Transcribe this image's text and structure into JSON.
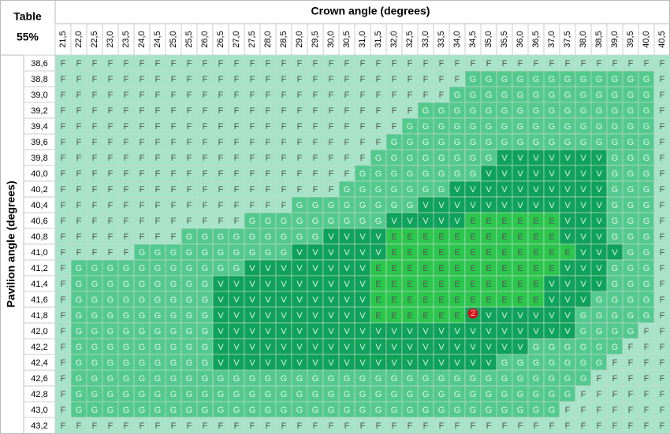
{
  "table": {
    "corner_title": "Table",
    "corner_subtitle": "55%",
    "column_title": "Crown angle (degrees)",
    "row_title": "Pavilion angle (degrees)",
    "columns": [
      "21,5",
      "22,0",
      "22,5",
      "23,0",
      "23,5",
      "24,0",
      "24,5",
      "25,0",
      "25,5",
      "26,0",
      "26,5",
      "27,0",
      "27,5",
      "28,0",
      "28,5",
      "29,0",
      "29,5",
      "30,0",
      "30,5",
      "31,0",
      "31,5",
      "32,0",
      "32,5",
      "33,0",
      "33,5",
      "34,0",
      "34,5",
      "35,0",
      "35,5",
      "36,0",
      "36,5",
      "37,0",
      "37,5",
      "38,0",
      "38,5",
      "39,0",
      "39,5",
      "40,0",
      "40,5"
    ],
    "rows": [
      {
        "label": "38,6",
        "cells": [
          "F",
          "F",
          "F",
          "F",
          "F",
          "F",
          "F",
          "F",
          "F",
          "F",
          "F",
          "F",
          "F",
          "F",
          "F",
          "F",
          "F",
          "F",
          "F",
          "F",
          "F",
          "F",
          "F",
          "F",
          "F",
          "F",
          "F",
          "F",
          "F",
          "F",
          "F",
          "F",
          "F",
          "F",
          "F",
          "F",
          "F",
          "F",
          "F"
        ]
      },
      {
        "label": "38,8",
        "cells": [
          "F",
          "F",
          "F",
          "F",
          "F",
          "F",
          "F",
          "F",
          "F",
          "F",
          "F",
          "F",
          "F",
          "F",
          "F",
          "F",
          "F",
          "F",
          "F",
          "F",
          "F",
          "F",
          "F",
          "F",
          "F",
          "F",
          "G",
          "G",
          "G",
          "G",
          "G",
          "G",
          "G",
          "G",
          "G",
          "G",
          "G",
          "G",
          "F"
        ]
      },
      {
        "label": "39,0",
        "cells": [
          "F",
          "F",
          "F",
          "F",
          "F",
          "F",
          "F",
          "F",
          "F",
          "F",
          "F",
          "F",
          "F",
          "F",
          "F",
          "F",
          "F",
          "F",
          "F",
          "F",
          "F",
          "F",
          "F",
          "F",
          "F",
          "G",
          "G",
          "G",
          "G",
          "G",
          "G",
          "G",
          "G",
          "G",
          "G",
          "G",
          "G",
          "G",
          "F"
        ]
      },
      {
        "label": "39,2",
        "cells": [
          "F",
          "F",
          "F",
          "F",
          "F",
          "F",
          "F",
          "F",
          "F",
          "F",
          "F",
          "F",
          "F",
          "F",
          "F",
          "F",
          "F",
          "F",
          "F",
          "F",
          "F",
          "F",
          "F",
          "G",
          "G",
          "G",
          "G",
          "G",
          "G",
          "G",
          "G",
          "G",
          "G",
          "G",
          "G",
          "G",
          "G",
          "G",
          "F"
        ]
      },
      {
        "label": "39,4",
        "cells": [
          "F",
          "F",
          "F",
          "F",
          "F",
          "F",
          "F",
          "F",
          "F",
          "F",
          "F",
          "F",
          "F",
          "F",
          "F",
          "F",
          "F",
          "F",
          "F",
          "F",
          "F",
          "F",
          "G",
          "G",
          "G",
          "G",
          "G",
          "G",
          "G",
          "G",
          "G",
          "G",
          "G",
          "G",
          "G",
          "G",
          "G",
          "G",
          "F"
        ]
      },
      {
        "label": "39,6",
        "cells": [
          "F",
          "F",
          "F",
          "F",
          "F",
          "F",
          "F",
          "F",
          "F",
          "F",
          "F",
          "F",
          "F",
          "F",
          "F",
          "F",
          "F",
          "F",
          "F",
          "F",
          "F",
          "G",
          "G",
          "G",
          "G",
          "G",
          "G",
          "G",
          "G",
          "G",
          "G",
          "G",
          "G",
          "G",
          "G",
          "G",
          "G",
          "G",
          "F"
        ]
      },
      {
        "label": "39,8",
        "cells": [
          "F",
          "F",
          "F",
          "F",
          "F",
          "F",
          "F",
          "F",
          "F",
          "F",
          "F",
          "F",
          "F",
          "F",
          "F",
          "F",
          "F",
          "F",
          "F",
          "F",
          "G",
          "G",
          "G",
          "G",
          "G",
          "G",
          "G",
          "G",
          "V",
          "V",
          "V",
          "V",
          "V",
          "V",
          "V",
          "G",
          "G",
          "G",
          "F"
        ]
      },
      {
        "label": "40,0",
        "cells": [
          "F",
          "F",
          "F",
          "F",
          "F",
          "F",
          "F",
          "F",
          "F",
          "F",
          "F",
          "F",
          "F",
          "F",
          "F",
          "F",
          "F",
          "F",
          "F",
          "G",
          "G",
          "G",
          "G",
          "G",
          "G",
          "G",
          "G",
          "V",
          "V",
          "V",
          "V",
          "V",
          "V",
          "V",
          "V",
          "G",
          "G",
          "G",
          "F"
        ]
      },
      {
        "label": "40,2",
        "cells": [
          "F",
          "F",
          "F",
          "F",
          "F",
          "F",
          "F",
          "F",
          "F",
          "F",
          "F",
          "F",
          "F",
          "F",
          "F",
          "F",
          "F",
          "F",
          "G",
          "G",
          "G",
          "G",
          "G",
          "G",
          "G",
          "V",
          "V",
          "V",
          "V",
          "V",
          "V",
          "V",
          "V",
          "V",
          "V",
          "G",
          "G",
          "G",
          "F"
        ]
      },
      {
        "label": "40,4",
        "cells": [
          "F",
          "F",
          "F",
          "F",
          "F",
          "F",
          "F",
          "F",
          "F",
          "F",
          "F",
          "F",
          "F",
          "F",
          "F",
          "G",
          "G",
          "G",
          "G",
          "G",
          "G",
          "G",
          "G",
          "V",
          "V",
          "V",
          "V",
          "V",
          "V",
          "V",
          "V",
          "V",
          "V",
          "V",
          "V",
          "G",
          "G",
          "G",
          "F"
        ]
      },
      {
        "label": "40,6",
        "cells": [
          "F",
          "F",
          "F",
          "F",
          "F",
          "F",
          "F",
          "F",
          "F",
          "F",
          "F",
          "F",
          "G",
          "G",
          "G",
          "G",
          "G",
          "G",
          "G",
          "G",
          "G",
          "V",
          "V",
          "V",
          "V",
          "V",
          "E",
          "E",
          "E",
          "E",
          "E",
          "E",
          "V",
          "V",
          "V",
          "G",
          "G",
          "G",
          "F"
        ]
      },
      {
        "label": "40,8",
        "cells": [
          "F",
          "F",
          "F",
          "F",
          "F",
          "F",
          "F",
          "F",
          "G",
          "G",
          "G",
          "G",
          "G",
          "G",
          "G",
          "G",
          "G",
          "V",
          "V",
          "V",
          "V",
          "E",
          "E",
          "E",
          "E",
          "E",
          "E",
          "E",
          "E",
          "E",
          "E",
          "E",
          "V",
          "V",
          "V",
          "G",
          "G",
          "G",
          "F"
        ]
      },
      {
        "label": "41,0",
        "cells": [
          "F",
          "F",
          "F",
          "F",
          "F",
          "G",
          "G",
          "G",
          "G",
          "G",
          "G",
          "G",
          "G",
          "G",
          "G",
          "V",
          "V",
          "V",
          "V",
          "V",
          "V",
          "E",
          "E",
          "E",
          "E",
          "E",
          "E",
          "E",
          "E",
          "E",
          "E",
          "E",
          "E",
          "V",
          "V",
          "V",
          "G",
          "G",
          "F"
        ]
      },
      {
        "label": "41,2",
        "cells": [
          "F",
          "G",
          "G",
          "G",
          "G",
          "G",
          "G",
          "G",
          "G",
          "G",
          "G",
          "G",
          "V",
          "V",
          "V",
          "V",
          "V",
          "V",
          "V",
          "V",
          "E",
          "E",
          "E",
          "E",
          "E",
          "E",
          "E",
          "E",
          "E",
          "E",
          "E",
          "E",
          "V",
          "V",
          "V",
          "G",
          "G",
          "G",
          "F"
        ]
      },
      {
        "label": "41,4",
        "cells": [
          "F",
          "G",
          "G",
          "G",
          "G",
          "G",
          "G",
          "G",
          "G",
          "G",
          "V",
          "V",
          "V",
          "V",
          "V",
          "V",
          "V",
          "V",
          "V",
          "V",
          "E",
          "E",
          "E",
          "E",
          "E",
          "E",
          "E",
          "E",
          "E",
          "E",
          "E",
          "V",
          "V",
          "V",
          "V",
          "G",
          "G",
          "G",
          "F"
        ]
      },
      {
        "label": "41,6",
        "cells": [
          "F",
          "G",
          "G",
          "G",
          "G",
          "G",
          "G",
          "G",
          "G",
          "G",
          "V",
          "V",
          "V",
          "V",
          "V",
          "V",
          "V",
          "V",
          "V",
          "V",
          "E",
          "E",
          "E",
          "E",
          "E",
          "E",
          "E",
          "E",
          "E",
          "E",
          "E",
          "V",
          "V",
          "V",
          "G",
          "G",
          "G",
          "G",
          "F"
        ]
      },
      {
        "label": "41,8",
        "cells": [
          "F",
          "G",
          "G",
          "G",
          "G",
          "G",
          "G",
          "G",
          "G",
          "G",
          "V",
          "V",
          "V",
          "V",
          "V",
          "V",
          "V",
          "V",
          "V",
          "V",
          "E",
          "E",
          "E",
          "E",
          "E",
          "E",
          "2",
          "V",
          "V",
          "V",
          "V",
          "V",
          "V",
          "G",
          "G",
          "G",
          "G",
          "G",
          "F"
        ]
      },
      {
        "label": "42,0",
        "cells": [
          "F",
          "G",
          "G",
          "G",
          "G",
          "G",
          "G",
          "G",
          "G",
          "G",
          "V",
          "V",
          "V",
          "V",
          "V",
          "V",
          "V",
          "V",
          "V",
          "V",
          "V",
          "V",
          "V",
          "V",
          "V",
          "V",
          "V",
          "V",
          "V",
          "V",
          "V",
          "V",
          "V",
          "G",
          "G",
          "G",
          "G",
          "F",
          "F"
        ]
      },
      {
        "label": "42,2",
        "cells": [
          "F",
          "G",
          "G",
          "G",
          "G",
          "G",
          "G",
          "G",
          "G",
          "G",
          "V",
          "V",
          "V",
          "V",
          "V",
          "V",
          "V",
          "V",
          "V",
          "V",
          "V",
          "V",
          "V",
          "V",
          "V",
          "V",
          "V",
          "V",
          "V",
          "V",
          "G",
          "G",
          "G",
          "G",
          "G",
          "G",
          "F",
          "F",
          "F"
        ]
      },
      {
        "label": "42,4",
        "cells": [
          "F",
          "G",
          "G",
          "G",
          "G",
          "G",
          "G",
          "G",
          "G",
          "G",
          "V",
          "V",
          "V",
          "V",
          "V",
          "V",
          "V",
          "V",
          "V",
          "V",
          "V",
          "V",
          "V",
          "V",
          "V",
          "V",
          "V",
          "V",
          "G",
          "G",
          "G",
          "G",
          "G",
          "G",
          "G",
          "F",
          "F",
          "F",
          "F"
        ]
      },
      {
        "label": "42,6",
        "cells": [
          "F",
          "G",
          "G",
          "G",
          "G",
          "G",
          "G",
          "G",
          "G",
          "G",
          "G",
          "G",
          "G",
          "G",
          "G",
          "G",
          "G",
          "G",
          "G",
          "G",
          "G",
          "G",
          "G",
          "G",
          "G",
          "G",
          "G",
          "G",
          "G",
          "G",
          "G",
          "G",
          "G",
          "G",
          "F",
          "F",
          "F",
          "F",
          "F"
        ]
      },
      {
        "label": "42,8",
        "cells": [
          "F",
          "G",
          "G",
          "G",
          "G",
          "G",
          "G",
          "G",
          "G",
          "G",
          "G",
          "G",
          "G",
          "G",
          "G",
          "G",
          "G",
          "G",
          "G",
          "G",
          "G",
          "G",
          "G",
          "G",
          "G",
          "G",
          "G",
          "G",
          "G",
          "G",
          "G",
          "G",
          "G",
          "F",
          "F",
          "F",
          "F",
          "F",
          "F"
        ]
      },
      {
        "label": "43,0",
        "cells": [
          "F",
          "G",
          "G",
          "G",
          "G",
          "G",
          "G",
          "G",
          "G",
          "G",
          "G",
          "G",
          "G",
          "G",
          "G",
          "G",
          "G",
          "G",
          "G",
          "G",
          "G",
          "G",
          "G",
          "G",
          "G",
          "G",
          "G",
          "G",
          "G",
          "G",
          "G",
          "G",
          "F",
          "F",
          "F",
          "F",
          "F",
          "F",
          "F"
        ]
      },
      {
        "label": "43,2",
        "cells": [
          "F",
          "F",
          "F",
          "F",
          "F",
          "F",
          "F",
          "F",
          "F",
          "F",
          "F",
          "F",
          "F",
          "F",
          "F",
          "F",
          "F",
          "F",
          "F",
          "F",
          "F",
          "F",
          "F",
          "F",
          "F",
          "F",
          "F",
          "F",
          "F",
          "F",
          "F",
          "F",
          "F",
          "F",
          "F",
          "F",
          "F",
          "F",
          "F"
        ]
      }
    ]
  }
}
